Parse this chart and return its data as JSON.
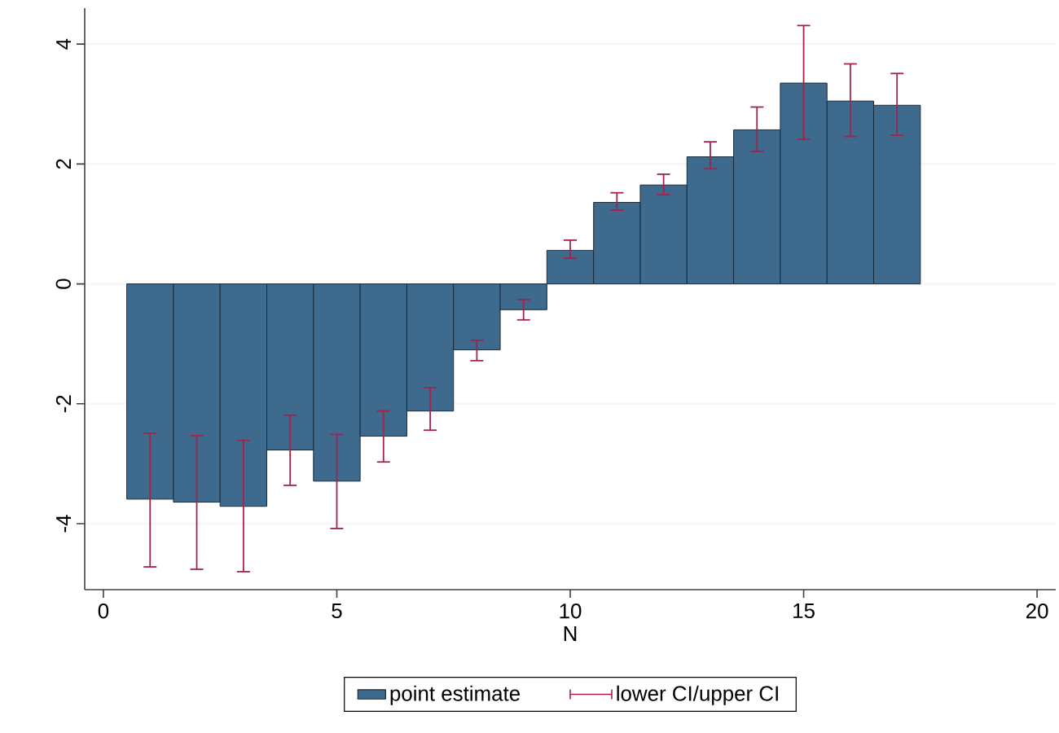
{
  "chart_data": {
    "type": "bar",
    "xlabel": "N",
    "x": [
      1,
      2,
      3,
      4,
      5,
      6,
      7,
      8,
      9,
      10,
      11,
      12,
      13,
      14,
      15,
      16,
      17
    ],
    "series": [
      {
        "name": "point estimate",
        "color": "#3e6a8e",
        "values": [
          -3.59,
          -3.64,
          -3.71,
          -2.77,
          -3.29,
          -2.54,
          -2.12,
          -1.1,
          -0.43,
          0.56,
          1.36,
          1.65,
          2.12,
          2.57,
          3.35,
          3.05,
          2.98
        ],
        "errors": [
          [
            -4.72,
            -2.49
          ],
          [
            -4.76,
            -2.53
          ],
          [
            -4.8,
            -2.61
          ],
          [
            -3.36,
            -2.19
          ],
          [
            -4.08,
            -2.51
          ],
          [
            -2.97,
            -2.12
          ],
          [
            -2.44,
            -1.73
          ],
          [
            -1.28,
            -0.94
          ],
          [
            -0.6,
            -0.26
          ],
          [
            0.43,
            0.73
          ],
          [
            1.23,
            1.52
          ],
          [
            1.49,
            1.83
          ],
          [
            1.92,
            2.37
          ],
          [
            2.21,
            2.95
          ],
          [
            2.41,
            4.31
          ],
          [
            2.46,
            3.67
          ],
          [
            2.48,
            3.51
          ]
        ]
      }
    ],
    "annotations": [
      "lower CI/upper CI"
    ],
    "xlim": [
      -0.4,
      20.4
    ],
    "ylim": [
      -5.1,
      4.6
    ],
    "xticks": [
      0,
      5,
      10,
      15,
      20
    ],
    "yticks": [
      -4,
      -2,
      0,
      2,
      4
    ],
    "grid": "y",
    "legend": "bottom"
  }
}
